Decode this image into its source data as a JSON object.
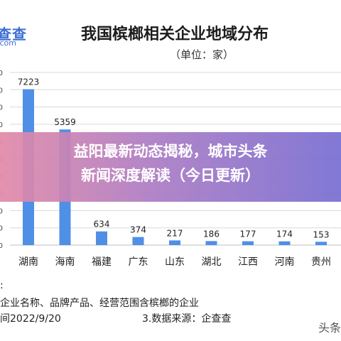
{
  "logo": {
    "name": "查查",
    "domain": ".com"
  },
  "headline": {
    "line1": "益阳最新动态揭秘，城市头条",
    "line2": "新闻深度解读（今日更新）"
  },
  "notes": {
    "line1": ":",
    "line2": "企业名称、品牌产品、经营范围含槟榔的企业",
    "line3": "间2022/9/20",
    "line4": "3.数据来源：企查查"
  },
  "watermark": "头条",
  "colors": {
    "bar": "#4f8fe6",
    "bar_top": "#5b97ea",
    "grid": "#d9d9d9",
    "overlay_left": "#e28aa8",
    "overlay_right": "#786ed2"
  },
  "chart_data": {
    "type": "bar",
    "title": "我国槟榔相关企业地域分布",
    "subtitle": "（单位：家）",
    "categories": [
      "湖南",
      "海南",
      "福建",
      "广东",
      "山东",
      "湖北",
      "江西",
      "河南",
      "贵州"
    ],
    "values": [
      7223,
      5359,
      634,
      374,
      217,
      186,
      177,
      174,
      153
    ],
    "value_labels": [
      "7223",
      "5359",
      "634",
      "374",
      "217",
      "186",
      "177",
      "174",
      "153"
    ],
    "y_tick_labels": [
      "0",
      "0",
      "0",
      "0",
      "0",
      "0",
      "0",
      "0",
      "0",
      "0",
      "0"
    ],
    "ylim": [
      0,
      8000
    ],
    "grid": true,
    "xlabel": "",
    "ylabel": ""
  }
}
